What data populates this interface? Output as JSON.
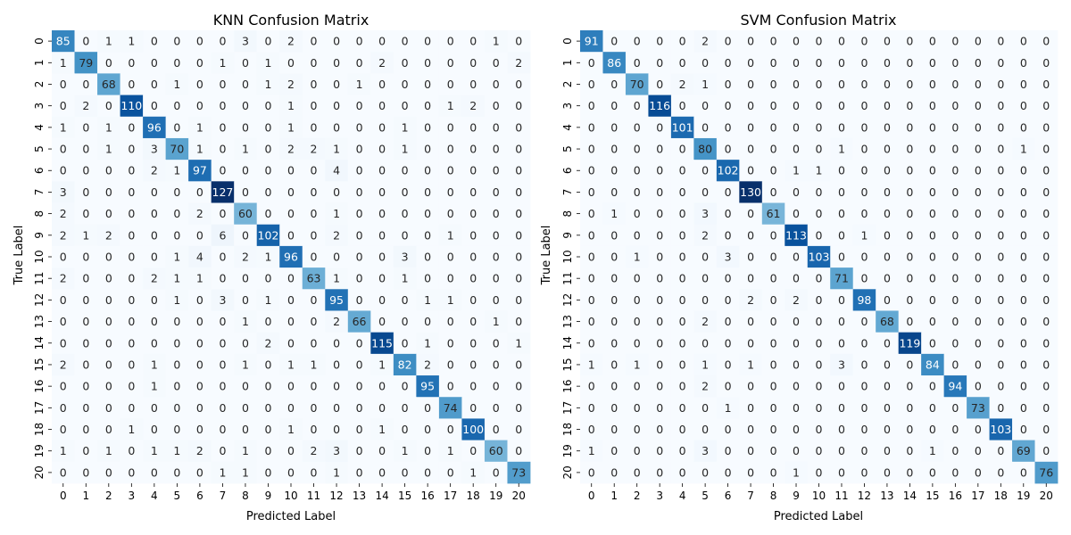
{
  "chart_data": [
    {
      "type": "heatmap",
      "title": "KNN Confusion Matrix",
      "xlabel": "Predicted Label",
      "ylabel": "True Label",
      "x_categories": [
        "0",
        "1",
        "2",
        "3",
        "4",
        "5",
        "6",
        "7",
        "8",
        "9",
        "10",
        "11",
        "12",
        "13",
        "14",
        "15",
        "16",
        "17",
        "18",
        "19",
        "20"
      ],
      "y_categories": [
        "0",
        "1",
        "2",
        "3",
        "4",
        "5",
        "6",
        "7",
        "8",
        "9",
        "10",
        "11",
        "12",
        "13",
        "14",
        "15",
        "16",
        "17",
        "18",
        "19",
        "20"
      ],
      "colormap": "Blues",
      "colorbar": false,
      "values": [
        [
          85,
          0,
          1,
          1,
          0,
          0,
          0,
          0,
          3,
          0,
          2,
          0,
          0,
          0,
          0,
          0,
          0,
          0,
          0,
          1,
          0
        ],
        [
          1,
          79,
          0,
          0,
          0,
          0,
          0,
          1,
          0,
          1,
          0,
          0,
          0,
          0,
          2,
          0,
          0,
          0,
          0,
          0,
          2
        ],
        [
          0,
          0,
          68,
          0,
          0,
          1,
          0,
          0,
          0,
          1,
          2,
          0,
          0,
          1,
          0,
          0,
          0,
          0,
          0,
          0,
          0
        ],
        [
          0,
          2,
          0,
          110,
          0,
          0,
          0,
          0,
          0,
          0,
          1,
          0,
          0,
          0,
          0,
          0,
          0,
          1,
          2,
          0,
          0
        ],
        [
          1,
          0,
          1,
          0,
          96,
          0,
          1,
          0,
          0,
          0,
          1,
          0,
          0,
          0,
          0,
          1,
          0,
          0,
          0,
          0,
          0
        ],
        [
          0,
          0,
          1,
          0,
          3,
          70,
          1,
          0,
          1,
          0,
          2,
          2,
          1,
          0,
          0,
          1,
          0,
          0,
          0,
          0,
          0
        ],
        [
          0,
          0,
          0,
          0,
          2,
          1,
          97,
          0,
          0,
          0,
          0,
          0,
          4,
          0,
          0,
          0,
          0,
          0,
          0,
          0,
          0
        ],
        [
          3,
          0,
          0,
          0,
          0,
          0,
          0,
          127,
          0,
          0,
          0,
          0,
          0,
          0,
          0,
          0,
          0,
          0,
          0,
          0,
          0
        ],
        [
          2,
          0,
          0,
          0,
          0,
          0,
          2,
          0,
          60,
          0,
          0,
          0,
          1,
          0,
          0,
          0,
          0,
          0,
          0,
          0,
          0
        ],
        [
          2,
          1,
          2,
          0,
          0,
          0,
          0,
          6,
          0,
          102,
          0,
          0,
          2,
          0,
          0,
          0,
          0,
          1,
          0,
          0,
          0
        ],
        [
          0,
          0,
          0,
          0,
          0,
          1,
          4,
          0,
          2,
          1,
          96,
          0,
          0,
          0,
          0,
          3,
          0,
          0,
          0,
          0,
          0
        ],
        [
          2,
          0,
          0,
          0,
          2,
          1,
          1,
          0,
          0,
          0,
          0,
          63,
          1,
          0,
          0,
          1,
          0,
          0,
          0,
          0,
          0
        ],
        [
          0,
          0,
          0,
          0,
          0,
          1,
          0,
          3,
          0,
          1,
          0,
          0,
          95,
          0,
          0,
          0,
          1,
          1,
          0,
          0,
          0
        ],
        [
          0,
          0,
          0,
          0,
          0,
          0,
          0,
          0,
          1,
          0,
          0,
          0,
          2,
          66,
          0,
          0,
          0,
          0,
          0,
          1,
          0
        ],
        [
          0,
          0,
          0,
          0,
          0,
          0,
          0,
          0,
          0,
          2,
          0,
          0,
          0,
          0,
          115,
          0,
          1,
          0,
          0,
          0,
          1
        ],
        [
          2,
          0,
          0,
          0,
          1,
          0,
          0,
          0,
          1,
          0,
          1,
          1,
          0,
          0,
          1,
          82,
          2,
          0,
          0,
          0,
          0
        ],
        [
          0,
          0,
          0,
          0,
          1,
          0,
          0,
          0,
          0,
          0,
          0,
          0,
          0,
          0,
          0,
          0,
          95,
          0,
          0,
          0,
          0
        ],
        [
          0,
          0,
          0,
          0,
          0,
          0,
          0,
          0,
          0,
          0,
          0,
          0,
          0,
          0,
          0,
          0,
          0,
          74,
          0,
          0,
          0
        ],
        [
          0,
          0,
          0,
          1,
          0,
          0,
          0,
          0,
          0,
          0,
          1,
          0,
          0,
          0,
          1,
          0,
          0,
          0,
          100,
          0,
          0
        ],
        [
          1,
          0,
          1,
          0,
          1,
          1,
          2,
          0,
          1,
          0,
          0,
          2,
          3,
          0,
          0,
          1,
          0,
          1,
          0,
          60,
          0
        ],
        [
          0,
          0,
          0,
          0,
          0,
          0,
          0,
          1,
          1,
          0,
          0,
          0,
          1,
          0,
          0,
          0,
          0,
          0,
          1,
          0,
          73
        ]
      ]
    },
    {
      "type": "heatmap",
      "title": "SVM Confusion Matrix",
      "xlabel": "Predicted Label",
      "ylabel": "True Label",
      "x_categories": [
        "0",
        "1",
        "2",
        "3",
        "4",
        "5",
        "6",
        "7",
        "8",
        "9",
        "10",
        "11",
        "12",
        "13",
        "14",
        "15",
        "16",
        "17",
        "18",
        "19",
        "20"
      ],
      "y_categories": [
        "0",
        "1",
        "2",
        "3",
        "4",
        "5",
        "6",
        "7",
        "8",
        "9",
        "10",
        "11",
        "12",
        "13",
        "14",
        "15",
        "16",
        "17",
        "18",
        "19",
        "20"
      ],
      "colormap": "Blues",
      "colorbar": false,
      "values": [
        [
          91,
          0,
          0,
          0,
          0,
          2,
          0,
          0,
          0,
          0,
          0,
          0,
          0,
          0,
          0,
          0,
          0,
          0,
          0,
          0,
          0
        ],
        [
          0,
          86,
          0,
          0,
          0,
          0,
          0,
          0,
          0,
          0,
          0,
          0,
          0,
          0,
          0,
          0,
          0,
          0,
          0,
          0,
          0
        ],
        [
          0,
          0,
          70,
          0,
          2,
          1,
          0,
          0,
          0,
          0,
          0,
          0,
          0,
          0,
          0,
          0,
          0,
          0,
          0,
          0,
          0
        ],
        [
          0,
          0,
          0,
          116,
          0,
          0,
          0,
          0,
          0,
          0,
          0,
          0,
          0,
          0,
          0,
          0,
          0,
          0,
          0,
          0,
          0
        ],
        [
          0,
          0,
          0,
          0,
          101,
          0,
          0,
          0,
          0,
          0,
          0,
          0,
          0,
          0,
          0,
          0,
          0,
          0,
          0,
          0,
          0
        ],
        [
          0,
          0,
          0,
          0,
          0,
          80,
          0,
          0,
          0,
          0,
          0,
          1,
          0,
          0,
          0,
          0,
          0,
          0,
          0,
          1,
          0
        ],
        [
          0,
          0,
          0,
          0,
          0,
          0,
          102,
          0,
          0,
          1,
          1,
          0,
          0,
          0,
          0,
          0,
          0,
          0,
          0,
          0,
          0
        ],
        [
          0,
          0,
          0,
          0,
          0,
          0,
          0,
          130,
          0,
          0,
          0,
          0,
          0,
          0,
          0,
          0,
          0,
          0,
          0,
          0,
          0
        ],
        [
          0,
          1,
          0,
          0,
          0,
          3,
          0,
          0,
          61,
          0,
          0,
          0,
          0,
          0,
          0,
          0,
          0,
          0,
          0,
          0,
          0
        ],
        [
          0,
          0,
          0,
          0,
          0,
          2,
          0,
          0,
          0,
          113,
          0,
          0,
          1,
          0,
          0,
          0,
          0,
          0,
          0,
          0,
          0
        ],
        [
          0,
          0,
          1,
          0,
          0,
          0,
          3,
          0,
          0,
          0,
          103,
          0,
          0,
          0,
          0,
          0,
          0,
          0,
          0,
          0,
          0
        ],
        [
          0,
          0,
          0,
          0,
          0,
          0,
          0,
          0,
          0,
          0,
          0,
          71,
          0,
          0,
          0,
          0,
          0,
          0,
          0,
          0,
          0
        ],
        [
          0,
          0,
          0,
          0,
          0,
          0,
          0,
          2,
          0,
          2,
          0,
          0,
          98,
          0,
          0,
          0,
          0,
          0,
          0,
          0,
          0
        ],
        [
          0,
          0,
          0,
          0,
          0,
          2,
          0,
          0,
          0,
          0,
          0,
          0,
          0,
          68,
          0,
          0,
          0,
          0,
          0,
          0,
          0
        ],
        [
          0,
          0,
          0,
          0,
          0,
          0,
          0,
          0,
          0,
          0,
          0,
          0,
          0,
          0,
          119,
          0,
          0,
          0,
          0,
          0,
          0
        ],
        [
          1,
          0,
          1,
          0,
          0,
          1,
          0,
          1,
          0,
          0,
          0,
          3,
          0,
          0,
          0,
          84,
          0,
          0,
          0,
          0,
          0
        ],
        [
          0,
          0,
          0,
          0,
          0,
          2,
          0,
          0,
          0,
          0,
          0,
          0,
          0,
          0,
          0,
          0,
          94,
          0,
          0,
          0,
          0
        ],
        [
          0,
          0,
          0,
          0,
          0,
          0,
          1,
          0,
          0,
          0,
          0,
          0,
          0,
          0,
          0,
          0,
          0,
          73,
          0,
          0,
          0
        ],
        [
          0,
          0,
          0,
          0,
          0,
          0,
          0,
          0,
          0,
          0,
          0,
          0,
          0,
          0,
          0,
          0,
          0,
          0,
          103,
          0,
          0
        ],
        [
          1,
          0,
          0,
          0,
          0,
          3,
          0,
          0,
          0,
          0,
          0,
          0,
          0,
          0,
          0,
          1,
          0,
          0,
          0,
          69,
          0
        ],
        [
          0,
          0,
          0,
          0,
          0,
          0,
          0,
          0,
          0,
          1,
          0,
          0,
          0,
          0,
          0,
          0,
          0,
          0,
          0,
          0,
          76
        ]
      ]
    }
  ]
}
